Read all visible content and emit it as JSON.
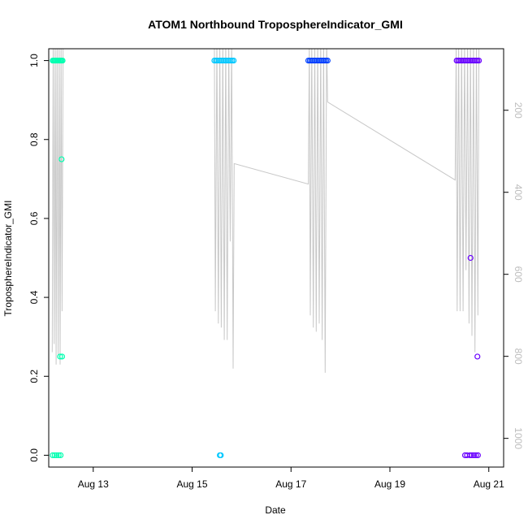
{
  "chart_data": {
    "type": "scatter",
    "title": "ATOM1 Northbound TroposphereIndicator_GMI",
    "xlabel": "Date",
    "ylabel": "TroposphereIndicator_GMI",
    "x_ticks": [
      {
        "label": "Aug 13",
        "day": 13
      },
      {
        "label": "Aug 15",
        "day": 15
      },
      {
        "label": "Aug 17",
        "day": 17
      },
      {
        "label": "Aug 19",
        "day": 19
      },
      {
        "label": "Aug 21",
        "day": 21
      }
    ],
    "xlim_days": [
      12.1,
      21.3
    ],
    "ylim": [
      -0.03,
      1.03
    ],
    "y_ticks": [
      0.0,
      0.2,
      0.4,
      0.6,
      0.8,
      1.0
    ],
    "y_tick_labels": [
      "0.0",
      "0.2",
      "0.4",
      "0.6",
      "0.8",
      "1.0"
    ],
    "y2_ticks": [
      200,
      400,
      600,
      800,
      1000
    ],
    "y2_tick_labels": [
      "200",
      "400",
      "600",
      "800",
      "1000"
    ],
    "y2lim": [
      50,
      1070
    ],
    "y2_reversed": true,
    "groups": [
      {
        "color": "#00ffb0",
        "ones": [
          12.18,
          12.2,
          12.22,
          12.24,
          12.26,
          12.28,
          12.3,
          12.32,
          12.34,
          12.36,
          12.38
        ],
        "zeros": [
          12.18,
          12.22,
          12.26,
          12.3,
          12.34
        ],
        "extras": [
          {
            "x": 12.36,
            "y": 0.75
          },
          {
            "x": 12.33,
            "y": 0.25
          },
          {
            "x": 12.37,
            "y": 0.25
          }
        ]
      },
      {
        "color": "#00c8ff",
        "ones": [
          15.45,
          15.48,
          15.51,
          15.54,
          15.57,
          15.6,
          15.63,
          15.66,
          15.69,
          15.72,
          15.75,
          15.78,
          15.81,
          15.84
        ],
        "zeros": [
          15.56,
          15.58
        ],
        "extras": []
      },
      {
        "color": "#0040ff",
        "ones": [
          17.35,
          17.38,
          17.41,
          17.44,
          17.47,
          17.5,
          17.53,
          17.56,
          17.59,
          17.62,
          17.65,
          17.68,
          17.71,
          17.74
        ],
        "zeros": [],
        "extras": []
      },
      {
        "color": "#6a00ff",
        "ones": [
          20.35,
          20.38,
          20.41,
          20.44,
          20.47,
          20.5,
          20.53,
          20.56,
          20.59,
          20.62,
          20.65,
          20.68,
          20.71,
          20.74,
          20.77,
          20.8
        ],
        "zeros": [
          20.52,
          20.56,
          20.62,
          20.66,
          20.7,
          20.74,
          20.78
        ],
        "extras": [
          {
            "x": 20.63,
            "y": 0.5
          },
          {
            "x": 20.77,
            "y": 0.25
          }
        ]
      }
    ],
    "pressure_series": [
      {
        "x": 12.17,
        "y": 790
      },
      {
        "x": 12.19,
        "y": 30
      },
      {
        "x": 12.21,
        "y": 770
      },
      {
        "x": 12.23,
        "y": 30
      },
      {
        "x": 12.25,
        "y": 820
      },
      {
        "x": 12.27,
        "y": 30
      },
      {
        "x": 12.29,
        "y": 800
      },
      {
        "x": 12.31,
        "y": 30
      },
      {
        "x": 12.33,
        "y": 820
      },
      {
        "x": 12.35,
        "y": 30
      },
      {
        "x": 12.37,
        "y": 690
      },
      {
        "x": 12.39,
        "y": 30
      },
      {
        "x": 15.45,
        "y": 30
      },
      {
        "x": 15.47,
        "y": 690
      },
      {
        "x": 15.5,
        "y": 30
      },
      {
        "x": 15.53,
        "y": 720
      },
      {
        "x": 15.56,
        "y": 30
      },
      {
        "x": 15.59,
        "y": 730
      },
      {
        "x": 15.62,
        "y": 30
      },
      {
        "x": 15.65,
        "y": 760
      },
      {
        "x": 15.68,
        "y": 30
      },
      {
        "x": 15.71,
        "y": 760
      },
      {
        "x": 15.74,
        "y": 30
      },
      {
        "x": 15.77,
        "y": 520
      },
      {
        "x": 15.8,
        "y": 30
      },
      {
        "x": 15.83,
        "y": 830
      },
      {
        "x": 15.85,
        "y": 330
      },
      {
        "x": 17.35,
        "y": 380
      },
      {
        "x": 17.37,
        "y": 30
      },
      {
        "x": 17.39,
        "y": 700
      },
      {
        "x": 17.42,
        "y": 30
      },
      {
        "x": 17.45,
        "y": 730
      },
      {
        "x": 17.48,
        "y": 30
      },
      {
        "x": 17.51,
        "y": 740
      },
      {
        "x": 17.54,
        "y": 30
      },
      {
        "x": 17.57,
        "y": 720
      },
      {
        "x": 17.6,
        "y": 30
      },
      {
        "x": 17.63,
        "y": 760
      },
      {
        "x": 17.66,
        "y": 30
      },
      {
        "x": 17.69,
        "y": 840
      },
      {
        "x": 17.72,
        "y": 30
      },
      {
        "x": 17.74,
        "y": 180
      },
      {
        "x": 20.32,
        "y": 370
      },
      {
        "x": 20.34,
        "y": 30
      },
      {
        "x": 20.36,
        "y": 690
      },
      {
        "x": 20.39,
        "y": 30
      },
      {
        "x": 20.42,
        "y": 690
      },
      {
        "x": 20.45,
        "y": 30
      },
      {
        "x": 20.48,
        "y": 690
      },
      {
        "x": 20.51,
        "y": 30
      },
      {
        "x": 20.54,
        "y": 590
      },
      {
        "x": 20.57,
        "y": 30
      },
      {
        "x": 20.6,
        "y": 720
      },
      {
        "x": 20.63,
        "y": 30
      },
      {
        "x": 20.66,
        "y": 750
      },
      {
        "x": 20.69,
        "y": 30
      },
      {
        "x": 20.72,
        "y": 790
      },
      {
        "x": 20.75,
        "y": 30
      },
      {
        "x": 20.78,
        "y": 700
      },
      {
        "x": 20.8,
        "y": 30
      }
    ]
  }
}
